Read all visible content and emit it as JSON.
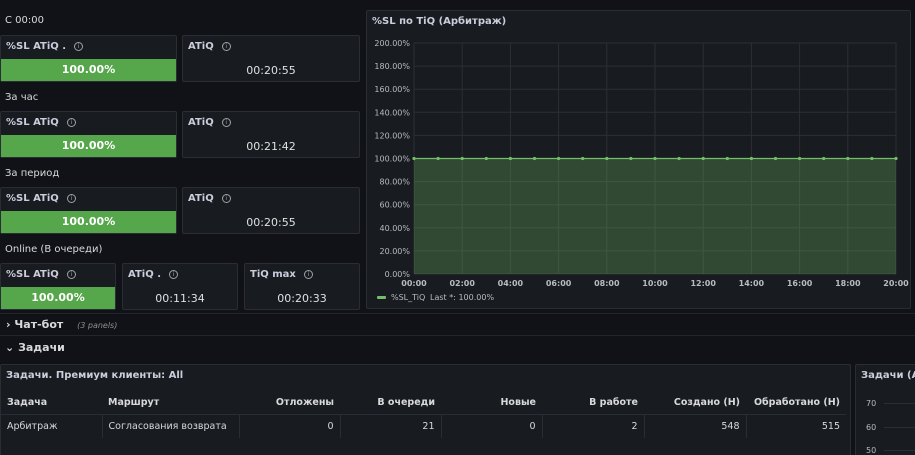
{
  "sections": {
    "since_midnight": "С 00:00",
    "per_hour": "За час",
    "per_period": "За период",
    "online": "Online (В очереди)"
  },
  "block1": {
    "sl_title": "%SL ATiQ .",
    "sl_value": "100.00%",
    "sl_fill": 1.0,
    "atiq_title": "ATiQ",
    "atiq_value": "00:20:55"
  },
  "block2": {
    "sl_title": "%SL ATiQ",
    "sl_value": "100.00%",
    "sl_fill": 1.0,
    "atiq_title": "ATiQ",
    "atiq_value": "00:21:42"
  },
  "block3": {
    "sl_title": "%SL ATiQ",
    "sl_value": "100.00%",
    "sl_fill": 1.0,
    "atiq_title": "ATiQ",
    "atiq_value": "00:20:55"
  },
  "block4": {
    "sl_title": "%SL ATiQ",
    "sl_value": "100.00%",
    "sl_fill": 1.0,
    "atiq_title": "ATiQ .",
    "atiq_value": "00:11:34",
    "tiq_title": "TiQ max",
    "tiq_value": "00:20:33"
  },
  "info_glyph": "i",
  "rows": {
    "chatbot": {
      "arrow": "›",
      "label": "Чат-бот",
      "sub": "(3 panels)"
    },
    "tasks": {
      "arrow": "⌄",
      "label": "Задачи"
    }
  },
  "chart_panel": {
    "title": "%SL по TiQ (Арбитраж)"
  },
  "chart_data": {
    "type": "area",
    "title": "%SL по TiQ (Арбитраж)",
    "x_ticks": [
      "00:00",
      "02:00",
      "04:00",
      "06:00",
      "08:00",
      "10:00",
      "12:00",
      "14:00",
      "16:00",
      "18:00",
      "20:00"
    ],
    "y_ticks": [
      "0.00%",
      "20.00%",
      "40.00%",
      "60.00%",
      "80.00%",
      "100.00%",
      "120.00%",
      "140.00%",
      "160.00%",
      "180.00%",
      "200.00%"
    ],
    "ylim": [
      0,
      200
    ],
    "xlim_hours": [
      0,
      20
    ],
    "series": [
      {
        "name": "%SL_TiQ",
        "color": "#73bf69",
        "x_hours": [
          0,
          1,
          2,
          3,
          4,
          5,
          6,
          7,
          8,
          9,
          10,
          11,
          12,
          13,
          14,
          15,
          16,
          17,
          18,
          19,
          20
        ],
        "values": [
          100,
          100,
          100,
          100,
          100,
          100,
          100,
          100,
          100,
          100,
          100,
          100,
          100,
          100,
          100,
          100,
          100,
          100,
          100,
          100,
          100
        ]
      }
    ],
    "legend": {
      "name": "%SL_TiQ",
      "stat": "Last *: 100.00%",
      "placement": "bottom-left"
    },
    "grid": true
  },
  "table_panel": {
    "title": "Задачи. Премиум клиенты: All",
    "columns": [
      "Задача",
      "Маршрут",
      "Отложены",
      "В очереди",
      "Новые",
      "В работе",
      "Создано (Н)",
      "Обработано (Н)"
    ],
    "rows": [
      [
        "Арбитраж",
        "Согласования возврата",
        "0",
        "21",
        "0",
        "2",
        "548",
        "515"
      ]
    ]
  },
  "right_panel": {
    "title": "Задачи (Ар",
    "y_ticks": [
      "70",
      "60",
      "50"
    ]
  }
}
